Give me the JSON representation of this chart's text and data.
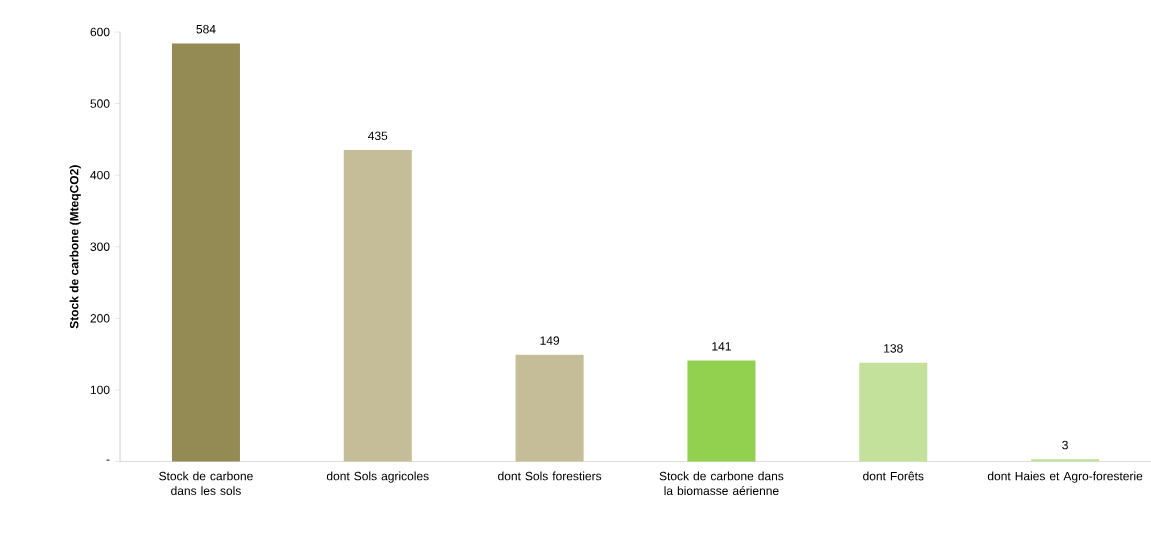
{
  "chart_data": {
    "type": "bar",
    "ylabel": "Stock de carbone (MteqCO2)",
    "categories": [
      "Stock de carbone dans les sols",
      "dont Sols agricoles",
      "dont Sols forestiers",
      "Stock de carbone dans la biomasse aérienne",
      "dont Forêts",
      "dont Haies et Agro-foresterie"
    ],
    "values": [
      584,
      435,
      149,
      141,
      138,
      3
    ],
    "colors": [
      "#948a54",
      "#c4bd97",
      "#c4bd97",
      "#92d050",
      "#c3e19b",
      "#c3e19b"
    ],
    "ylim": [
      0,
      600
    ],
    "yticks": [
      {
        "value": 0,
        "label": "-"
      },
      100,
      200,
      300,
      400,
      500,
      600
    ],
    "data_labels": true
  }
}
